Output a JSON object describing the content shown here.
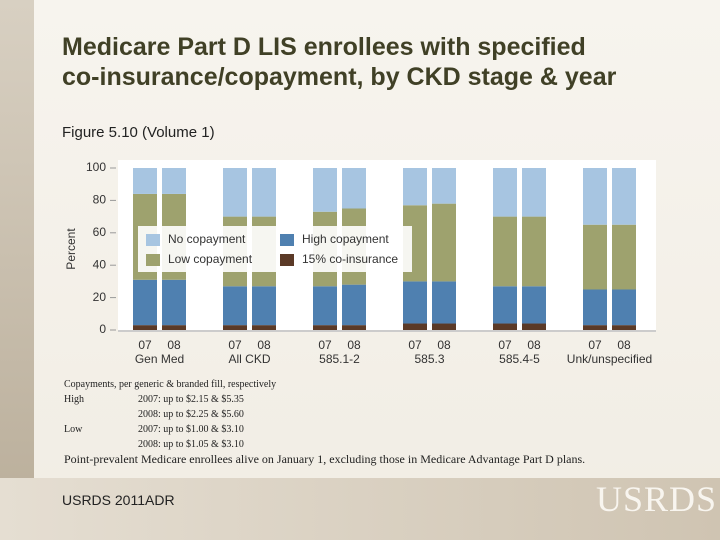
{
  "chart_data": {
    "type": "stacked_bar",
    "title": "Medicare Part D LIS enrollees with specified co-insurance/copayment, by CKD stage & year",
    "subtitle": "Figure 5.10 (Volume 1)",
    "ylabel": "Percent",
    "categories": [
      "07",
      "08",
      "07",
      "08",
      "07",
      "08",
      "07",
      "08",
      "07",
      "08",
      "07",
      "08"
    ],
    "groups": [
      "Gen Med",
      "All CKD",
      "585.1-2",
      "585.3",
      "585.4-5",
      "Unk/unspecified"
    ],
    "series": [
      {
        "name": "15% co-insurance",
        "color": "#5b3a27",
        "values": [
          3,
          3,
          3,
          3,
          3,
          3,
          4,
          4,
          4,
          4,
          3,
          3
        ]
      },
      {
        "name": "High copayment",
        "color": "#4f80b0",
        "values": [
          28,
          28,
          24,
          24,
          24,
          25,
          26,
          26,
          23,
          23,
          22,
          22
        ]
      },
      {
        "name": "Low copayment",
        "color": "#9ea26e",
        "values": [
          53,
          53,
          43,
          43,
          46,
          47,
          47,
          48,
          43,
          43,
          40,
          40
        ]
      },
      {
        "name": "No copayment",
        "color": "#a7c5e1",
        "values": [
          16,
          16,
          30,
          30,
          27,
          25,
          23,
          22,
          30,
          30,
          35,
          35
        ]
      }
    ],
    "ylim": [
      0,
      100
    ],
    "yticks": [
      0,
      20,
      40,
      60,
      80,
      100
    ],
    "grid": false,
    "legend": "center-left"
  },
  "notes": {
    "heading": "Copayments, per generic & branded fill, respectively",
    "rows": [
      {
        "label": "High",
        "lines": [
          "2007: up to $2.15 & $5.35",
          "2008: up to $2.25 & $5.60"
        ]
      },
      {
        "label": "Low",
        "lines": [
          "2007: up to $1.00 & $3.10",
          "2008: up to $1.05 & $3.10"
        ]
      }
    ]
  },
  "footnote": "Point-prevalent Medicare enrollees alive on January 1, excluding those in Medicare Advantage Part D plans.",
  "source": "USRDS 2011ADR",
  "logo": "USRDS"
}
